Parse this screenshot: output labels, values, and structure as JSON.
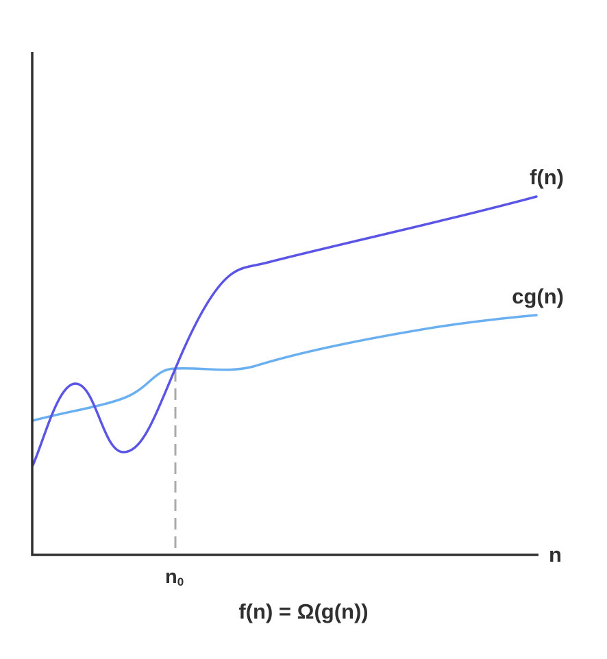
{
  "labels": {
    "x_axis": "n",
    "threshold_main": "n",
    "threshold_sub": "0",
    "caption": "f(n) = Ω(g(n))"
  },
  "chart_data": {
    "type": "line",
    "xlabel": "n",
    "ylabel": "",
    "threshold": {
      "label": "n₀"
    },
    "series": [
      {
        "name": "f(n)",
        "color": "#5b55e6"
      },
      {
        "name": "cg(n)",
        "color": "#6aaff0"
      }
    ],
    "grid": false
  },
  "colors": {
    "f_curve": "#5b55e6",
    "cg_curve": "#6aaff0",
    "axis": "#2f2f2f",
    "threshold_line": "#aaaaaa",
    "text": "#2f2f2f"
  }
}
